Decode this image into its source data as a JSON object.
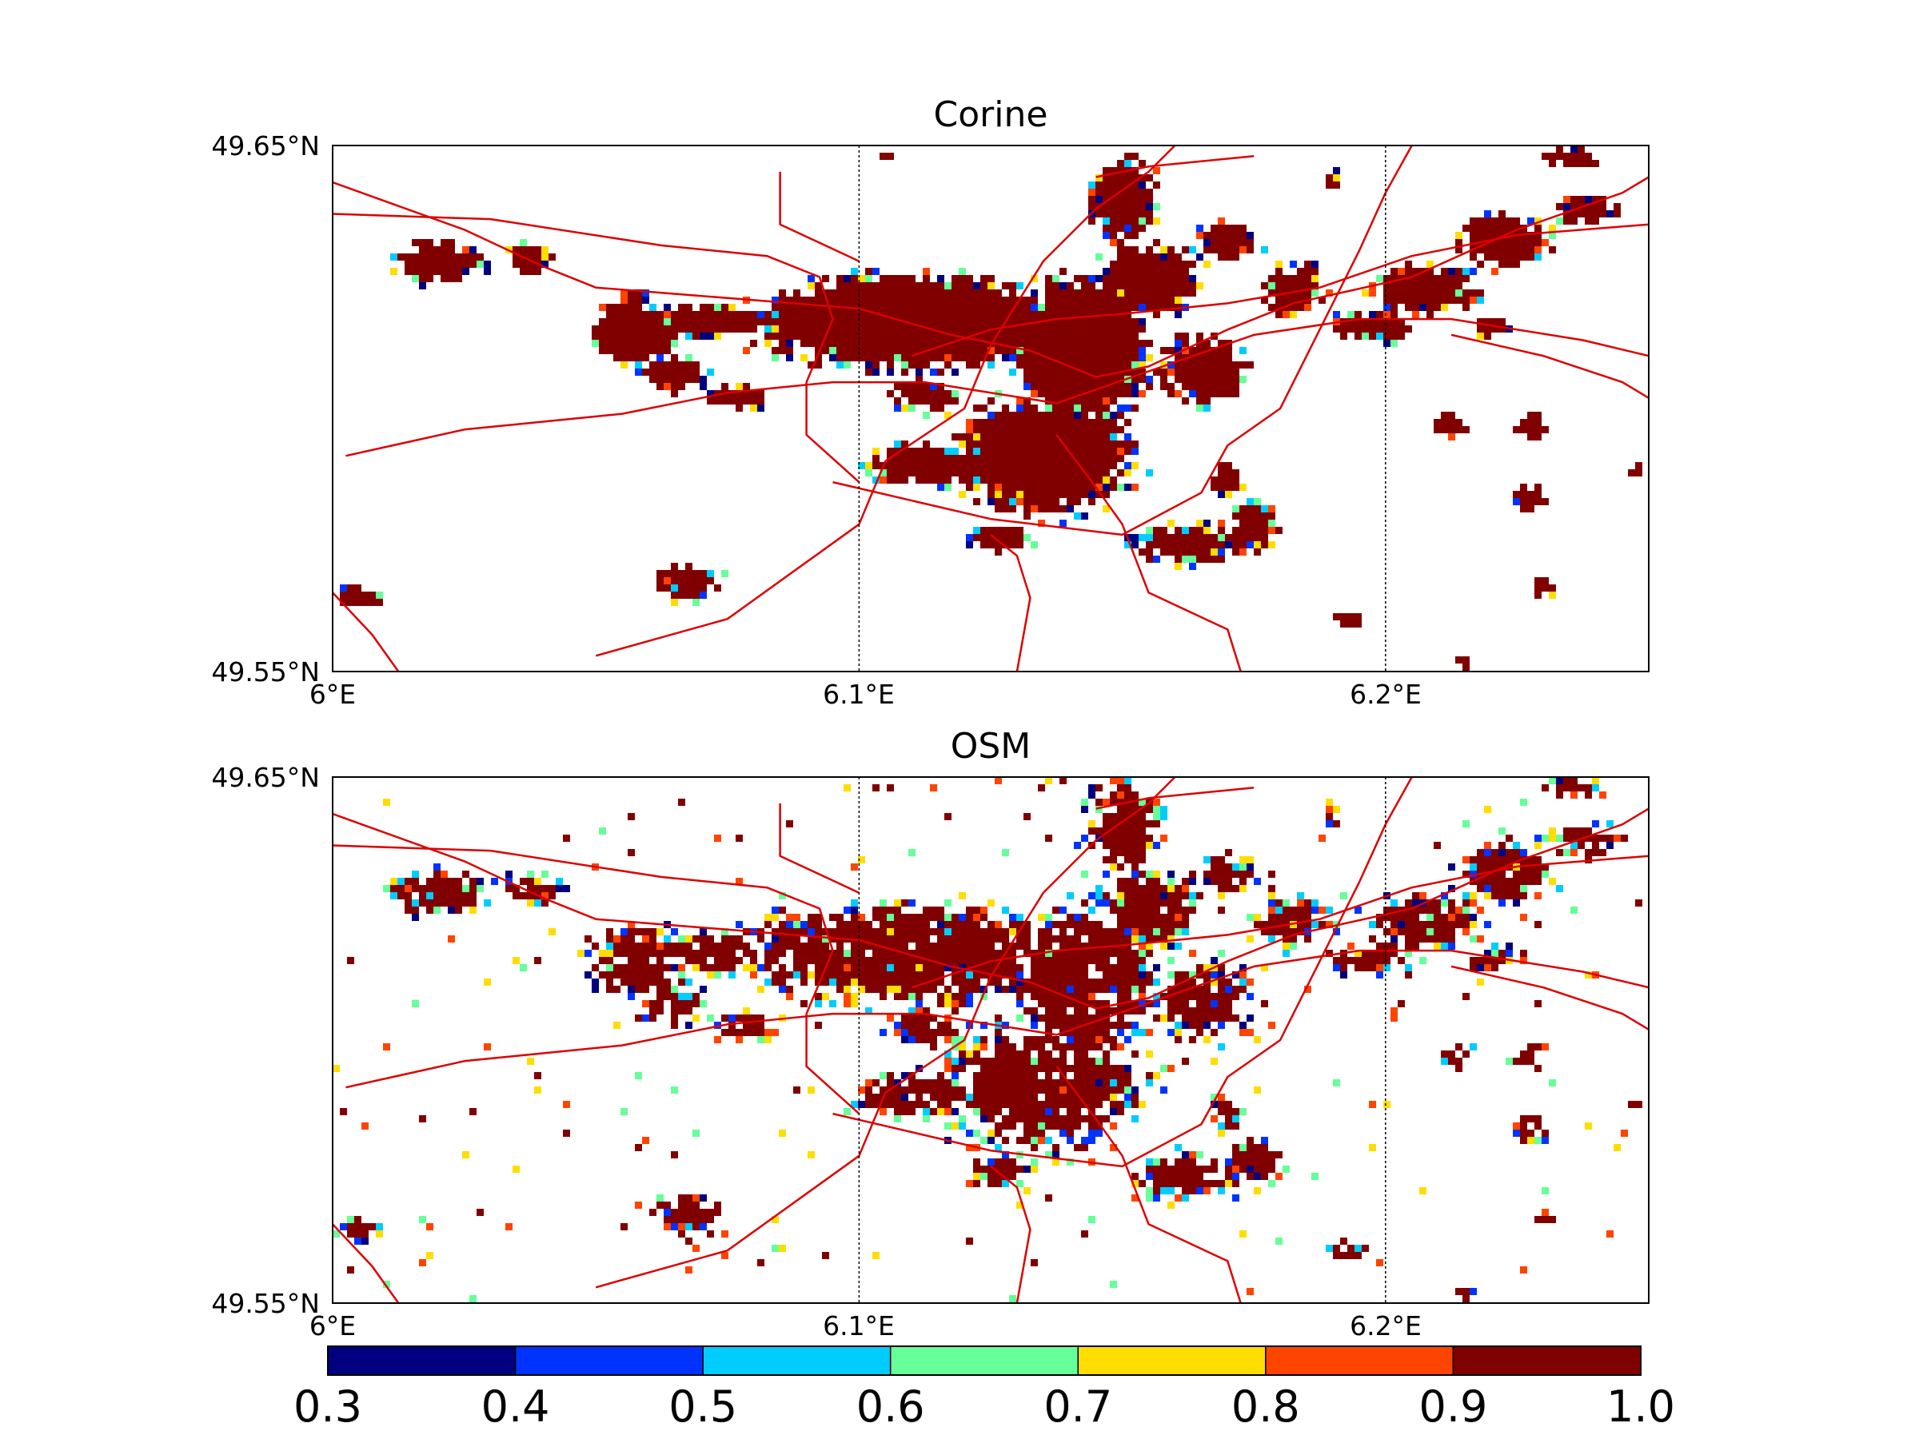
{
  "maps": [
    {
      "id": "corine",
      "title": "Corine",
      "style": "blocky",
      "lon_range": [
        6.0,
        6.25
      ],
      "lat_range": [
        49.55,
        49.65
      ],
      "lat_ticks": [
        {
          "value": 49.65,
          "label": "49.65°N"
        },
        {
          "value": 49.55,
          "label": "49.55°N"
        }
      ],
      "lon_ticks": [
        {
          "value": 6.0,
          "label": "6°E"
        },
        {
          "value": 6.1,
          "label": "6.1°E"
        },
        {
          "value": 6.2,
          "label": "6.2°E"
        }
      ],
      "meridians": [
        6.1,
        6.2
      ]
    },
    {
      "id": "osm",
      "title": "OSM",
      "style": "speckled",
      "lon_range": [
        6.0,
        6.25
      ],
      "lat_range": [
        49.55,
        49.65
      ],
      "lat_ticks": [
        {
          "value": 49.65,
          "label": "49.65°N"
        },
        {
          "value": 49.55,
          "label": "49.55°N"
        }
      ],
      "lon_ticks": [
        {
          "value": 6.0,
          "label": "6°E"
        },
        {
          "value": 6.1,
          "label": "6.1°E"
        },
        {
          "value": 6.2,
          "label": "6.2°E"
        }
      ],
      "meridians": [
        6.1,
        6.2
      ]
    }
  ],
  "colorbar": {
    "range": [
      0.3,
      1.0
    ],
    "tick_labels": [
      "0.3",
      "0.4",
      "0.5",
      "0.6",
      "0.7",
      "0.8",
      "0.9",
      "1.0"
    ],
    "colors": [
      "#000080",
      "#0033ff",
      "#00ccff",
      "#66ff99",
      "#ffdd00",
      "#ff4400",
      "#800000"
    ]
  },
  "road_color": "#dd0000",
  "urban_color": "#800000"
}
